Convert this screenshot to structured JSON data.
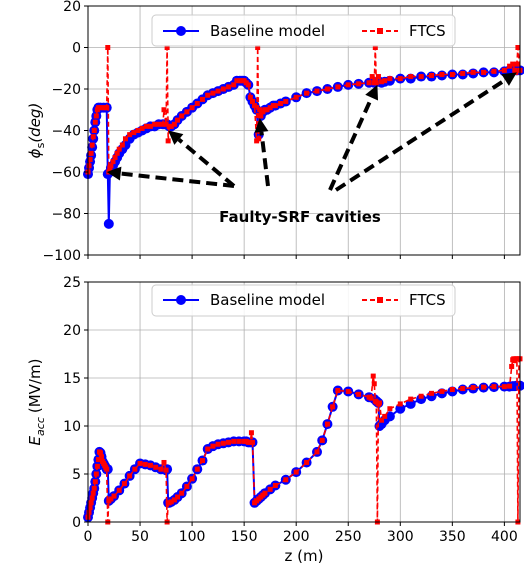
{
  "chart_data": [
    {
      "type": "line",
      "ylabel_main": "ϕ",
      "ylabel_sub": "s",
      "ylabel_unit": "(deg)",
      "xlim": [
        0,
        415
      ],
      "ylim": [
        -100,
        20
      ],
      "xticks": [
        0,
        50,
        100,
        150,
        200,
        250,
        300,
        350,
        400
      ],
      "yticks": [
        20,
        0,
        -20,
        -40,
        -60,
        -80,
        -100
      ],
      "ytick_labels": [
        "20",
        "0",
        "−20",
        "−40",
        "−60",
        "−80",
        "−100"
      ],
      "grid": true,
      "legend_position": "top",
      "colors": {
        "baseline": "#0000ff",
        "ftcs": "#ff0000"
      },
      "series": [
        {
          "name": "Baseline model",
          "style": "solid line with circle markers",
          "x": [
            0,
            1,
            2,
            3,
            4,
            5,
            6,
            7,
            8,
            9,
            10,
            12,
            15,
            18,
            19,
            20,
            21,
            22,
            24,
            26,
            28,
            30,
            33,
            36,
            40,
            44,
            48,
            52,
            56,
            60,
            64,
            68,
            72,
            74,
            76,
            78,
            80,
            83,
            86,
            90,
            95,
            100,
            105,
            110,
            115,
            120,
            125,
            130,
            135,
            140,
            143,
            146,
            148,
            150,
            152,
            154,
            156,
            158,
            160,
            162,
            164,
            166,
            168,
            170,
            172,
            175,
            178,
            180,
            185,
            190,
            200,
            210,
            220,
            230,
            240,
            250,
            260,
            270,
            275,
            278,
            280,
            282,
            285,
            290,
            300,
            310,
            320,
            330,
            340,
            350,
            360,
            370,
            380,
            390,
            400,
            405,
            408,
            412,
            415
          ],
          "y": [
            -61,
            -58,
            -55,
            -52,
            -48,
            -44,
            -40,
            -36,
            -33,
            -30,
            -29,
            -29,
            -29,
            -29,
            -61,
            -85,
            -60,
            -58,
            -57,
            -55,
            -53,
            -51,
            -49,
            -47,
            -44,
            -42,
            -41,
            -40,
            -39,
            -38,
            -38,
            -37,
            -37,
            -37,
            -37,
            -38,
            -38,
            -37,
            -35,
            -33,
            -31,
            -29,
            -27,
            -25,
            -23,
            -22,
            -21,
            -20,
            -19,
            -18,
            -16,
            -16,
            -16,
            -16,
            -17,
            -18,
            -24,
            -26,
            -28,
            -30,
            -42,
            -33,
            -31,
            -30,
            -30,
            -29,
            -28,
            -28,
            -27,
            -26,
            -24,
            -22,
            -21,
            -20,
            -19,
            -18,
            -17.5,
            -17,
            -17,
            -16.5,
            -16.5,
            -17,
            -16.5,
            -16,
            -15,
            -15,
            -14,
            -14,
            -13.5,
            -13,
            -13,
            -12.5,
            -12,
            -12,
            -11.5,
            -11,
            -11,
            -11,
            -11
          ]
        },
        {
          "name": "FTCS",
          "style": "dashed line with square markers",
          "x": [
            0,
            1,
            2,
            3,
            4,
            5,
            6,
            7,
            8,
            9,
            10,
            12,
            15,
            17,
            18,
            19,
            20,
            21,
            22,
            24,
            26,
            28,
            30,
            33,
            36,
            40,
            44,
            48,
            52,
            56,
            60,
            64,
            68,
            72,
            73,
            75,
            76,
            77,
            78,
            80,
            83,
            86,
            90,
            95,
            100,
            105,
            110,
            115,
            120,
            125,
            130,
            135,
            140,
            143,
            146,
            148,
            150,
            152,
            154,
            156,
            158,
            160,
            162,
            163,
            164,
            165,
            166,
            168,
            170,
            172,
            175,
            178,
            180,
            185,
            190,
            200,
            210,
            220,
            230,
            240,
            250,
            260,
            270,
            273,
            275,
            276,
            277,
            279,
            282,
            285,
            290,
            300,
            310,
            320,
            330,
            340,
            350,
            360,
            370,
            380,
            390,
            400,
            405,
            408,
            410,
            411,
            412,
            413,
            415
          ],
          "y": [
            -60,
            -57,
            -54,
            -51,
            -47,
            -43,
            -40,
            -36,
            -33,
            -30,
            -29,
            -29,
            -29,
            -29,
            -29,
            0,
            -60,
            -58,
            -57,
            -55,
            -53,
            -51,
            -49,
            -47,
            -44,
            -42,
            -41,
            -40,
            -39,
            -38,
            -38,
            -37,
            -37,
            -37,
            -30,
            -37,
            0,
            -45,
            -38,
            -38,
            -37,
            -35,
            -33,
            -31,
            -29,
            -27,
            -25,
            -23,
            -22,
            -21,
            -20,
            -19,
            -18,
            -16,
            -16,
            -16,
            -16,
            -17,
            -18,
            -24,
            -26,
            -28,
            -45,
            0,
            -44,
            -30,
            -33,
            -31,
            -30,
            -30,
            -29,
            -28,
            -28,
            -27,
            -26,
            -24,
            -22,
            -21,
            -20,
            -19,
            -18,
            -17.5,
            -17,
            -14,
            -17,
            0,
            -17,
            -14,
            -16.5,
            -16,
            -15,
            -15,
            -14,
            -14,
            -13.5,
            -13,
            -13,
            -12.5,
            -12,
            -12,
            -11.5,
            -11,
            -9,
            -8,
            -11,
            -12,
            -8,
            0,
            -11
          ]
        }
      ],
      "annotation": {
        "text": "Faulty-SRF cavities",
        "arrow_targets": [
          [
            18,
            -60
          ],
          [
            77,
            -40
          ],
          [
            165,
            -34
          ],
          [
            278,
            -18
          ],
          [
            412,
            -12
          ]
        ]
      }
    },
    {
      "type": "line",
      "ylabel_main": "E",
      "ylabel_sub": "acc",
      "ylabel_unit": "(MV/m)",
      "xlabel": "z (m)",
      "xlim": [
        0,
        415
      ],
      "ylim": [
        0,
        25
      ],
      "xticks": [
        0,
        50,
        100,
        150,
        200,
        250,
        300,
        350,
        400
      ],
      "xtick_labels": [
        "0",
        "50",
        "100",
        "150",
        "200",
        "250",
        "300",
        "350",
        "400"
      ],
      "yticks": [
        0,
        5,
        10,
        15,
        20,
        25
      ],
      "ytick_labels": [
        "0",
        "5",
        "10",
        "15",
        "20",
        "25"
      ],
      "grid": true,
      "legend_position": "top",
      "colors": {
        "baseline": "#0000ff",
        "ftcs": "#ff0000"
      },
      "series": [
        {
          "name": "Baseline model",
          "style": "solid line with circle markers",
          "x": [
            0,
            1,
            2,
            3,
            4,
            5,
            6,
            7,
            8,
            9,
            10,
            11,
            12,
            13,
            14,
            15,
            16,
            17,
            18,
            19,
            20,
            22,
            25,
            30,
            35,
            40,
            45,
            50,
            55,
            60,
            65,
            70,
            75,
            76,
            77,
            78,
            80,
            83,
            86,
            90,
            95,
            100,
            105,
            110,
            115,
            120,
            125,
            130,
            135,
            140,
            145,
            150,
            152,
            154,
            156,
            158,
            160,
            162,
            164,
            166,
            168,
            170,
            175,
            180,
            190,
            200,
            210,
            220,
            225,
            230,
            235,
            240,
            250,
            260,
            270,
            275,
            277,
            278,
            279,
            280,
            282,
            285,
            290,
            300,
            310,
            320,
            330,
            340,
            350,
            360,
            370,
            380,
            390,
            400,
            405,
            408,
            410,
            412,
            415
          ],
          "y": [
            0.5,
            1,
            1.5,
            2,
            2.5,
            3,
            3.5,
            4.2,
            5,
            5.8,
            6.5,
            7.3,
            7.2,
            6.8,
            6.3,
            6.1,
            5.9,
            5.7,
            5.5,
            5.5,
            2.2,
            2.4,
            2.7,
            3.3,
            4,
            4.8,
            5.5,
            6.1,
            6,
            5.9,
            5.7,
            5.5,
            5.4,
            5.5,
            2,
            2,
            2.1,
            2.3,
            2.6,
            3,
            3.7,
            4.5,
            5.5,
            6.4,
            7.6,
            7.9,
            8.1,
            8.2,
            8.3,
            8.4,
            8.4,
            8.4,
            8.4,
            8.3,
            8.3,
            8.3,
            2,
            2.2,
            2.4,
            2.6,
            2.8,
            3,
            3.4,
            3.8,
            4.4,
            5.2,
            6.2,
            7.3,
            8.5,
            10.2,
            12,
            13.7,
            13.6,
            13.3,
            13,
            12.8,
            12.6,
            12.5,
            12.4,
            10,
            10.2,
            10.6,
            11,
            11.8,
            12.3,
            12.8,
            13.1,
            13.4,
            13.6,
            13.8,
            13.9,
            14,
            14.05,
            14.1,
            14.1,
            14.15,
            14.15,
            14.2,
            14.2
          ]
        },
        {
          "name": "FTCS",
          "style": "dashed line with square markers",
          "x": [
            0,
            1,
            2,
            3,
            4,
            5,
            6,
            7,
            8,
            9,
            10,
            11,
            12,
            13,
            14,
            15,
            16,
            17,
            18,
            19,
            20,
            22,
            25,
            30,
            35,
            40,
            45,
            50,
            55,
            60,
            65,
            70,
            73,
            75,
            76,
            77,
            78,
            80,
            83,
            86,
            90,
            95,
            100,
            105,
            110,
            115,
            120,
            125,
            130,
            135,
            140,
            145,
            150,
            152,
            154,
            156,
            157,
            158,
            160,
            162,
            164,
            166,
            168,
            170,
            175,
            180,
            190,
            200,
            210,
            220,
            225,
            230,
            235,
            240,
            250,
            260,
            270,
            272,
            274,
            275,
            276,
            277,
            278,
            279,
            280,
            282,
            285,
            290,
            300,
            310,
            320,
            330,
            340,
            350,
            360,
            370,
            380,
            390,
            400,
            405,
            407,
            408,
            409,
            410,
            411,
            412,
            413,
            414,
            415
          ],
          "y": [
            0.5,
            1,
            1.5,
            2,
            2.5,
            3,
            3.5,
            4.2,
            5,
            5.8,
            6.5,
            7.3,
            7.2,
            6.8,
            6.3,
            6.1,
            5.9,
            5.7,
            5.5,
            0,
            2.2,
            2.4,
            2.7,
            3.3,
            4,
            4.8,
            5.5,
            6.1,
            6,
            5.9,
            5.7,
            5.5,
            6.2,
            5.4,
            0,
            2,
            2,
            2.1,
            2.3,
            2.6,
            3,
            3.7,
            4.5,
            5.5,
            6.4,
            7.6,
            7.9,
            8.1,
            8.2,
            8.3,
            8.4,
            8.4,
            8.4,
            8.4,
            8.3,
            8.3,
            9.3,
            8.3,
            2,
            2.2,
            2.4,
            2.6,
            2.8,
            3,
            3.4,
            3.8,
            4.4,
            5.2,
            6.2,
            7.3,
            8.5,
            10.2,
            12,
            13.7,
            13.6,
            13.3,
            13,
            12.9,
            15.2,
            14.4,
            12.6,
            12.5,
            0,
            12.3,
            12.4,
            10.6,
            11,
            11.8,
            12.3,
            12.8,
            13.1,
            13.4,
            13.6,
            13.8,
            13.9,
            14,
            14.05,
            14.1,
            14.1,
            14.15,
            16.2,
            16.9,
            17,
            16.8,
            17,
            17,
            0,
            17,
            17
          ]
        }
      ]
    }
  ]
}
